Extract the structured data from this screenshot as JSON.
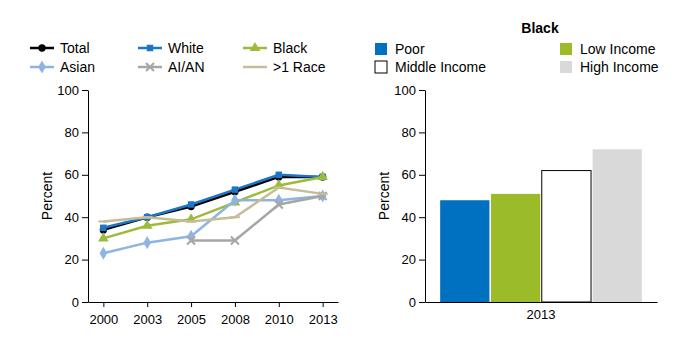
{
  "chart_data": [
    {
      "type": "line",
      "y_label": "Percent",
      "categories": [
        "2000",
        "2003",
        "2005",
        "2008",
        "2010",
        "2013"
      ],
      "series": [
        {
          "name": "Total",
          "color": "#000000",
          "marker": "circle",
          "values": [
            34,
            40,
            45,
            52,
            59,
            59
          ]
        },
        {
          "name": "White",
          "color": "#1F74C5",
          "marker": "square",
          "values": [
            35,
            40,
            46,
            53,
            60,
            59
          ]
        },
        {
          "name": "Black",
          "color": "#9BBB3B",
          "marker": "triangle",
          "values": [
            30,
            36,
            39,
            47,
            55,
            59
          ]
        },
        {
          "name": "Asian",
          "color": "#8FB4E3",
          "marker": "diamond",
          "values": [
            23,
            28,
            31,
            48,
            48,
            50
          ]
        },
        {
          "name": "AI/AN",
          "color": "#A6A6A6",
          "marker": "x",
          "values": [
            null,
            null,
            29,
            29,
            46,
            50
          ]
        },
        {
          "name": ">1 Race",
          "color": "#C4BD97",
          "marker": "dash",
          "values": [
            38,
            40,
            38,
            40,
            54,
            51
          ]
        }
      ],
      "ylim": [
        0,
        100
      ],
      "yticks": [
        0,
        20,
        40,
        60,
        80,
        100
      ],
      "grid": false,
      "legend": "top"
    },
    {
      "type": "bar",
      "title": "Black",
      "y_label": "Percent",
      "categories": [
        "2013"
      ],
      "series": [
        {
          "name": "Poor",
          "color": "#0070C0",
          "values": [
            48
          ]
        },
        {
          "name": "Low Income",
          "color": "#9BBB29",
          "values": [
            51
          ]
        },
        {
          "name": "Middle Income",
          "color": "#FFFFFF",
          "values": [
            62
          ]
        },
        {
          "name": "High Income",
          "color": "#D9D9D9",
          "values": [
            72
          ]
        }
      ],
      "ylim": [
        0,
        100
      ],
      "yticks": [
        0,
        20,
        40,
        60,
        80,
        100
      ],
      "grid": false,
      "legend": "top"
    }
  ]
}
